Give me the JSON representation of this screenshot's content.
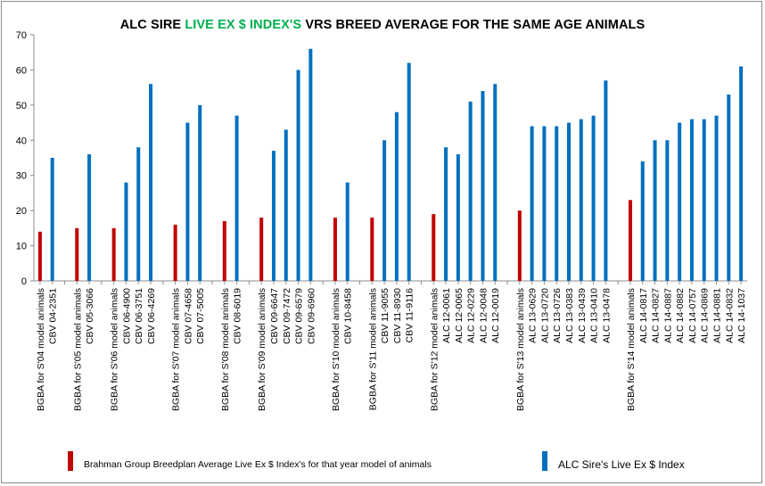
{
  "title": {
    "part1": "ALC SIRE ",
    "highlight": "LIVE EX $ INDEX'S",
    "part2": " VRS BREED AVERAGE FOR THE SAME AGE ANIMALS",
    "highlight_color": "#00b050"
  },
  "legend": [
    {
      "label": "Brahman Group Breedplan Average Live Ex $ Index's for that year model of animals",
      "color": "#c00000"
    },
    {
      "label": "ALC Sire's Live Ex $ Index",
      "color": "#0070c0"
    }
  ],
  "chart_data": {
    "type": "bar",
    "title": "ALC SIRE LIVE EX $ INDEX'S VRS BREED AVERAGE FOR THE SAME AGE ANIMALS",
    "xlabel": "",
    "ylabel": "",
    "ylim": [
      0,
      70
    ],
    "yticks": [
      0,
      10,
      20,
      30,
      40,
      50,
      60,
      70
    ],
    "grid": false,
    "legend_position": "bottom",
    "series": [
      {
        "name": "Brahman Group Breedplan Average Live Ex $ Index's for that year model of animals",
        "color": "#c00000"
      },
      {
        "name": "ALC Sire's Live Ex $ Index",
        "color": "#0070c0"
      }
    ],
    "groups": [
      {
        "bars": [
          {
            "label": "BGBA for S'04 model animals",
            "value": 14,
            "series": 0
          },
          {
            "label": "CBV 04-2351",
            "value": 35,
            "series": 1
          }
        ]
      },
      {
        "bars": [
          {
            "label": "BGBA for S'05 model animals",
            "value": 15,
            "series": 0
          },
          {
            "label": "CBV 05-3066",
            "value": 36,
            "series": 1
          }
        ]
      },
      {
        "bars": [
          {
            "label": "BGBA for S'06 model animals",
            "value": 15,
            "series": 0
          },
          {
            "label": "CBV 06-4900",
            "value": 28,
            "series": 1
          },
          {
            "label": "CBV 06-3751",
            "value": 38,
            "series": 1
          },
          {
            "label": "CBV 06-4269",
            "value": 56,
            "series": 1
          }
        ]
      },
      {
        "bars": [
          {
            "label": "BGBA for S'07 model animals",
            "value": 16,
            "series": 0
          },
          {
            "label": "CBV 07-4658",
            "value": 45,
            "series": 1
          },
          {
            "label": "CBV 07-5005",
            "value": 50,
            "series": 1
          }
        ]
      },
      {
        "bars": [
          {
            "label": "BGBA for S'08 model animals",
            "value": 17,
            "series": 0
          },
          {
            "label": "CBV 08-6019",
            "value": 47,
            "series": 1
          }
        ]
      },
      {
        "bars": [
          {
            "label": "BGBA for S'09 model animals",
            "value": 18,
            "series": 0
          },
          {
            "label": "CBV 09-6647",
            "value": 37,
            "series": 1
          },
          {
            "label": "CBV 09-7472",
            "value": 43,
            "series": 1
          },
          {
            "label": "CBV 09-6579",
            "value": 60,
            "series": 1
          },
          {
            "label": "CBV 09-6960",
            "value": 66,
            "series": 1
          }
        ]
      },
      {
        "bars": [
          {
            "label": "BGBA for S'10 model animals",
            "value": 18,
            "series": 0
          },
          {
            "label": "CBV 10-8458",
            "value": 28,
            "series": 1
          }
        ]
      },
      {
        "bars": [
          {
            "label": "BGBA for S'11 model animals",
            "value": 18,
            "series": 0
          },
          {
            "label": "CBV 11-9055",
            "value": 40,
            "series": 1
          },
          {
            "label": "CBV 11-8930",
            "value": 48,
            "series": 1
          },
          {
            "label": "CBV 11-9116",
            "value": 62,
            "series": 1
          }
        ]
      },
      {
        "bars": [
          {
            "label": "BGBA for S'12 model animals",
            "value": 19,
            "series": 0
          },
          {
            "label": "ALC 12-0061",
            "value": 38,
            "series": 1
          },
          {
            "label": "ALC 12-0065",
            "value": 36,
            "series": 1
          },
          {
            "label": "ALC 12-0229",
            "value": 51,
            "series": 1
          },
          {
            "label": "ALC 12-0048",
            "value": 54,
            "series": 1
          },
          {
            "label": "ALC 12-0019",
            "value": 56,
            "series": 1
          }
        ]
      },
      {
        "bars": [
          {
            "label": "BGBA for S'13 model animals",
            "value": 20,
            "series": 0
          },
          {
            "label": "ALC 13-0629",
            "value": 44,
            "series": 1
          },
          {
            "label": "ALC 13-0720",
            "value": 44,
            "series": 1
          },
          {
            "label": "ALC 13-0726",
            "value": 44,
            "series": 1
          },
          {
            "label": "ALC 13-0383",
            "value": 45,
            "series": 1
          },
          {
            "label": "ALC 13-0439",
            "value": 46,
            "series": 1
          },
          {
            "label": "ALC 13-0410",
            "value": 47,
            "series": 1
          },
          {
            "label": "ALC 13-0478",
            "value": 57,
            "series": 1
          }
        ]
      },
      {
        "bars": [
          {
            "label": "BGBA for S'14 model animals",
            "value": 23,
            "series": 0
          },
          {
            "label": "ALC 14-0817",
            "value": 34,
            "series": 1
          },
          {
            "label": "ALC 14-0827",
            "value": 40,
            "series": 1
          },
          {
            "label": "ALC 14-0887",
            "value": 40,
            "series": 1
          },
          {
            "label": "ALC 14-0882",
            "value": 45,
            "series": 1
          },
          {
            "label": "ALC 14-0757",
            "value": 46,
            "series": 1
          },
          {
            "label": "ALC 14-0869",
            "value": 46,
            "series": 1
          },
          {
            "label": "ALC 14-0881",
            "value": 47,
            "series": 1
          },
          {
            "label": "ALC 14-0832",
            "value": 53,
            "series": 1
          },
          {
            "label": "ALC 14-1037",
            "value": 61,
            "series": 1
          }
        ]
      }
    ]
  }
}
